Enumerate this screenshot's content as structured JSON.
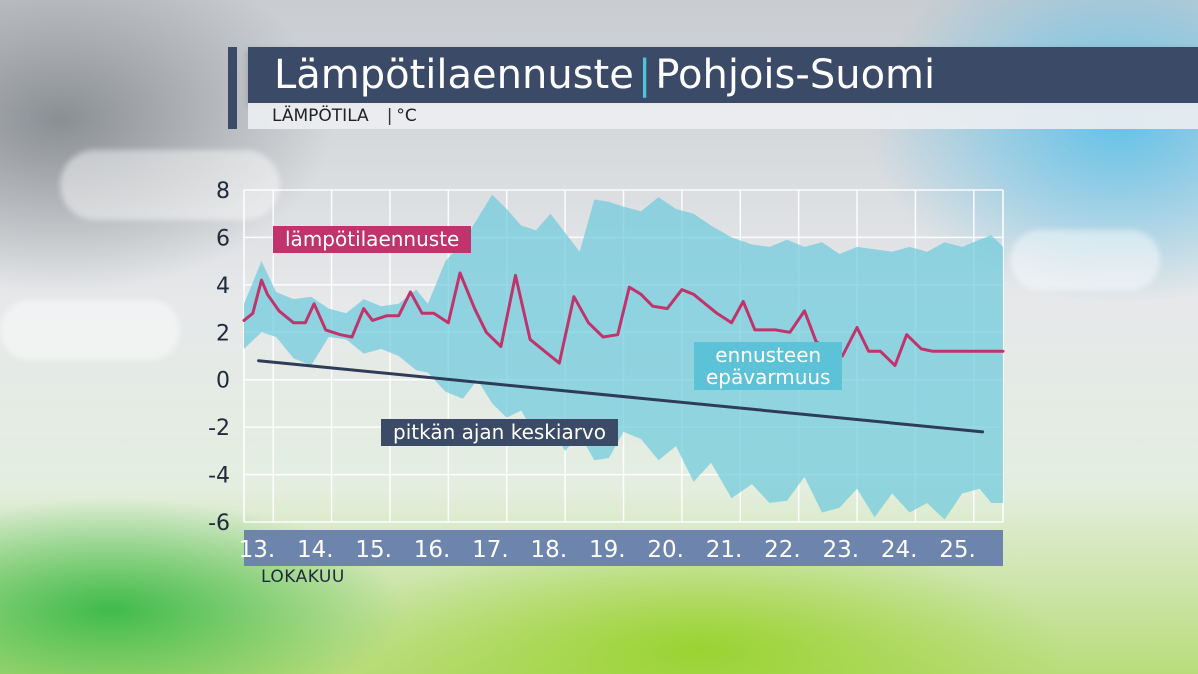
{
  "header": {
    "title": "Lämpötilaennuste",
    "region": "Pohjois-Suomi",
    "subtitle_left": "LÄMPÖTILA",
    "subtitle_right": "°C"
  },
  "colors": {
    "forecast_line": "#c0336b",
    "uncertainty_band": "#6fcbdc",
    "mean_line": "#2f3c57",
    "axis_bar": "#6d85ad",
    "grid": "#ffffff"
  },
  "chart_data": {
    "type": "line",
    "xlabel": "LOKAKUU",
    "ylabel": "°C",
    "ylim": [
      -6,
      8
    ],
    "xlim": [
      12.95,
      25.95
    ],
    "yticks": [
      8,
      6,
      4,
      2,
      0,
      -2,
      -4,
      -6
    ],
    "categories": [
      "13.",
      "14.",
      "15.",
      "16.",
      "17.",
      "18.",
      "19.",
      "20.",
      "21.",
      "22.",
      "23.",
      "24.",
      "25."
    ],
    "grid": true,
    "series": [
      {
        "name": "lämpötilaennuste",
        "x": [
          12.95,
          13.1,
          13.25,
          13.35,
          13.55,
          13.8,
          14.0,
          14.15,
          14.35,
          14.6,
          14.8,
          15.0,
          15.15,
          15.4,
          15.6,
          15.8,
          16.0,
          16.2,
          16.45,
          16.65,
          16.9,
          17.1,
          17.35,
          17.6,
          17.85,
          18.1,
          18.35,
          18.6,
          18.85,
          19.1,
          19.35,
          19.55,
          19.75,
          19.95,
          20.2,
          20.45,
          20.65,
          20.85,
          21.05,
          21.3,
          21.5,
          21.7,
          21.9,
          22.05,
          22.3,
          22.55,
          22.75,
          22.95,
          23.2,
          23.45,
          23.65,
          23.85,
          24.1,
          24.3,
          24.55,
          24.75,
          24.95,
          25.2,
          25.45,
          25.7,
          25.95
        ],
        "y": [
          2.5,
          2.8,
          4.2,
          3.6,
          2.9,
          2.4,
          2.4,
          3.2,
          2.1,
          1.9,
          1.8,
          3.0,
          2.5,
          2.7,
          2.7,
          3.7,
          2.8,
          2.8,
          2.4,
          4.5,
          3.0,
          2.0,
          1.4,
          4.4,
          1.7,
          1.2,
          0.7,
          3.5,
          2.4,
          1.8,
          1.9,
          3.9,
          3.6,
          3.1,
          3.0,
          3.8,
          3.6,
          3.2,
          2.8,
          2.4,
          3.3,
          2.1,
          2.1,
          2.1,
          2.0,
          2.9,
          1.6,
          1.3,
          1.0,
          2.2,
          1.2,
          1.2,
          0.6,
          1.9,
          1.3,
          1.2,
          1.2,
          1.2,
          1.2,
          1.2,
          1.2
        ]
      },
      {
        "name": "ennusteen epävarmuus",
        "x": [
          12.95,
          13.25,
          13.5,
          13.8,
          14.1,
          14.4,
          14.7,
          15.0,
          15.3,
          15.6,
          15.9,
          16.1,
          16.4,
          16.7,
          16.95,
          17.2,
          17.45,
          17.7,
          17.95,
          18.2,
          18.45,
          18.7,
          18.95,
          19.2,
          19.45,
          19.75,
          20.05,
          20.35,
          20.65,
          20.95,
          21.3,
          21.65,
          21.95,
          22.25,
          22.55,
          22.85,
          23.15,
          23.45,
          23.75,
          24.05,
          24.35,
          24.65,
          24.95,
          25.25,
          25.55,
          25.75,
          25.95
        ],
        "upper": [
          3.2,
          5.0,
          3.7,
          3.4,
          3.5,
          3.0,
          2.8,
          3.4,
          3.1,
          3.2,
          3.8,
          3.2,
          5.0,
          5.8,
          6.8,
          7.8,
          7.2,
          6.5,
          6.3,
          7.0,
          6.2,
          5.4,
          7.6,
          7.5,
          7.3,
          7.1,
          7.7,
          7.2,
          7.0,
          6.5,
          6.0,
          5.7,
          5.6,
          5.9,
          5.6,
          5.8,
          5.3,
          5.6,
          5.5,
          5.4,
          5.6,
          5.4,
          5.8,
          5.6,
          5.9,
          6.1,
          5.6
        ],
        "lower": [
          1.3,
          2.0,
          1.8,
          0.9,
          0.6,
          1.8,
          1.7,
          1.1,
          1.3,
          1.0,
          0.4,
          0.3,
          -0.5,
          -0.8,
          0.0,
          -1.0,
          -1.6,
          -1.3,
          -2.4,
          -2.0,
          -3.0,
          -2.3,
          -3.4,
          -3.3,
          -2.2,
          -2.5,
          -3.4,
          -2.8,
          -4.3,
          -3.5,
          -5.0,
          -4.4,
          -5.2,
          -5.1,
          -4.1,
          -5.6,
          -5.4,
          -4.6,
          -5.8,
          -4.8,
          -5.6,
          -5.2,
          -5.9,
          -4.8,
          -4.6,
          -5.2,
          -5.2
        ]
      },
      {
        "name": "pitkän ajan keskiarvo",
        "x": [
          13.2,
          25.6
        ],
        "y": [
          0.8,
          -2.2
        ]
      }
    ]
  },
  "labels": {
    "forecast": "lämpötilaennuste",
    "uncertainty_1": "ennusteen",
    "uncertainty_2": "epävarmuus",
    "mean": "pitkän ajan keskiarvo"
  }
}
